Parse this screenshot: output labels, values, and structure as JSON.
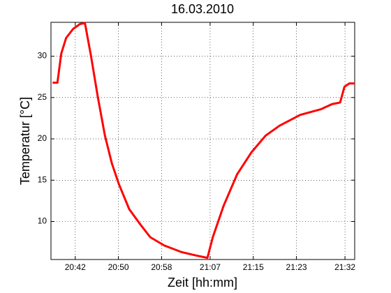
{
  "chart_data": {
    "type": "line",
    "title": "16.03.2010",
    "x_label": "Zeit [hh:mm]",
    "y_label": "Temperatur [°C]",
    "x": [
      "20:37:48",
      "20:38:42",
      "20:39:24",
      "20:40:18",
      "20:41:36",
      "20:42:54",
      "20:43:48",
      "20:44:54",
      "20:46:12",
      "20:47:30",
      "20:48:48",
      "20:50:06",
      "20:52:00",
      "20:54:00",
      "20:55:54",
      "20:58:30",
      "21:01:42",
      "21:04:18",
      "21:06:30",
      "21:07:30",
      "21:09:30",
      "21:12:00",
      "21:14:42",
      "21:17:18",
      "21:19:54",
      "21:23:42",
      "21:27:36",
      "21:29:36",
      "21:31:06",
      "21:31:54",
      "21:32:48",
      "21:33:48"
    ],
    "series": [
      {
        "name": "Temperatur",
        "color": "#ff0000",
        "values": [
          26.8,
          26.8,
          30.3,
          32.2,
          33.3,
          33.9,
          34.0,
          30.1,
          25.0,
          20.4,
          17.0,
          14.5,
          11.5,
          9.7,
          8.1,
          7.1,
          6.3,
          5.9,
          5.6,
          8.1,
          11.9,
          15.7,
          18.4,
          20.4,
          21.6,
          22.9,
          23.6,
          24.2,
          24.4,
          26.3,
          26.7,
          26.7
        ]
      }
    ],
    "xlim": [
      "20:37:30",
      "21:33:48"
    ],
    "xticks": [
      "20:42",
      "20:50",
      "20:58",
      "21:07",
      "21:15",
      "21:23",
      "21:32"
    ],
    "ylim": [
      5.4,
      34.1
    ],
    "yticks": [
      10,
      15,
      20,
      25,
      30
    ],
    "grid": true
  }
}
